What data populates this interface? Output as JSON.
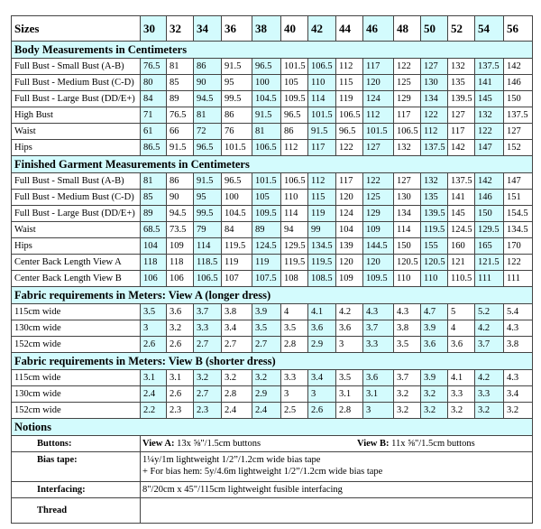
{
  "header": {
    "label": "Sizes",
    "sizes": [
      "30",
      "32",
      "34",
      "36",
      "38",
      "40",
      "42",
      "44",
      "46",
      "48",
      "50",
      "52",
      "54",
      "56"
    ]
  },
  "colors": {
    "highlight": "#d3fbfd",
    "border": "#444444"
  },
  "sections": [
    {
      "title": "Body Measurements in Centimeters",
      "rows": [
        {
          "label": "Full Bust - Small Bust (A-B)",
          "values": [
            "76.5",
            "81",
            "86",
            "91.5",
            "96.5",
            "101.5",
            "106.5",
            "112",
            "117",
            "122",
            "127",
            "132",
            "137.5",
            "142"
          ]
        },
        {
          "label": "Full Bust - Medium Bust (C-D)",
          "values": [
            "80",
            "85",
            "90",
            "95",
            "100",
            "105",
            "110",
            "115",
            "120",
            "125",
            "130",
            "135",
            "141",
            "146"
          ]
        },
        {
          "label": "Full Bust - Large Bust (DD/E+)",
          "values": [
            "84",
            "89",
            "94.5",
            "99.5",
            "104.5",
            "109.5",
            "114",
            "119",
            "124",
            "129",
            "134",
            "139.5",
            "145",
            "150"
          ]
        },
        {
          "label": "High Bust",
          "values": [
            "71",
            "76.5",
            "81",
            "86",
            "91.5",
            "96.5",
            "101.5",
            "106.5",
            "112",
            "117",
            "122",
            "127",
            "132",
            "137.5"
          ]
        },
        {
          "label": "Waist",
          "values": [
            "61",
            "66",
            "72",
            "76",
            "81",
            "86",
            "91.5",
            "96.5",
            "101.5",
            "106.5",
            "112",
            "117",
            "122",
            "127"
          ]
        },
        {
          "label": "Hips",
          "values": [
            "86.5",
            "91.5",
            "96.5",
            "101.5",
            "106.5",
            "112",
            "117",
            "122",
            "127",
            "132",
            "137.5",
            "142",
            "147",
            "152"
          ]
        }
      ]
    },
    {
      "title": "Finished Garment Measurements in Centimeters",
      "rows": [
        {
          "label": "Full Bust - Small Bust (A-B)",
          "values": [
            "81",
            "86",
            "91.5",
            "96.5",
            "101.5",
            "106.5",
            "112",
            "117",
            "122",
            "127",
            "132",
            "137.5",
            "142",
            "147"
          ]
        },
        {
          "label": "Full Bust - Medium Bust (C-D)",
          "values": [
            "85",
            "90",
            "95",
            "100",
            "105",
            "110",
            "115",
            "120",
            "125",
            "130",
            "135",
            "141",
            "146",
            "151"
          ]
        },
        {
          "label": "Full Bust - Large Bust (DD/E+)",
          "values": [
            "89",
            "94.5",
            "99.5",
            "104.5",
            "109.5",
            "114",
            "119",
            "124",
            "129",
            "134",
            "139.5",
            "145",
            "150",
            "154.5"
          ]
        },
        {
          "label": "Waist",
          "values": [
            "68.5",
            "73.5",
            "79",
            "84",
            "89",
            "94",
            "99",
            "104",
            "109",
            "114",
            "119.5",
            "124.5",
            "129.5",
            "134.5"
          ]
        },
        {
          "label": "Hips",
          "values": [
            "104",
            "109",
            "114",
            "119.5",
            "124.5",
            "129.5",
            "134.5",
            "139",
            "144.5",
            "150",
            "155",
            "160",
            "165",
            "170"
          ]
        },
        {
          "label": "Center Back Length View A",
          "values": [
            "118",
            "118",
            "118.5",
            "119",
            "119",
            "119.5",
            "119.5",
            "120",
            "120",
            "120.5",
            "120.5",
            "121",
            "121.5",
            "122"
          ]
        },
        {
          "label": "Center Back Length View B",
          "values": [
            "106",
            "106",
            "106.5",
            "107",
            "107.5",
            "108",
            "108.5",
            "109",
            "109.5",
            "110",
            "110",
            "110.5",
            "111",
            "111"
          ]
        }
      ]
    },
    {
      "title": "Fabric requirements in Meters: View A (longer dress)",
      "rows": [
        {
          "label": "115cm wide",
          "values": [
            "3.5",
            "3.6",
            "3.7",
            "3.8",
            "3.9",
            "4",
            "4.1",
            "4.2",
            "4.3",
            "4.3",
            "4.7",
            "5",
            "5.2",
            "5.4"
          ]
        },
        {
          "label": "130cm wide",
          "values": [
            "3",
            "3.2",
            "3.3",
            "3.4",
            "3.5",
            "3.5",
            "3.6",
            "3.6",
            "3.7",
            "3.8",
            "3.9",
            "4",
            "4.2",
            "4.3"
          ]
        },
        {
          "label": "152cm wide",
          "values": [
            "2.6",
            "2.6",
            "2.7",
            "2.7",
            "2.7",
            "2.8",
            "2.9",
            "3",
            "3.3",
            "3.5",
            "3.6",
            "3.6",
            "3.7",
            "3.8"
          ]
        }
      ]
    },
    {
      "title": "Fabric requirements in Meters: View B (shorter dress)",
      "rows": [
        {
          "label": "115cm wide",
          "values": [
            "3.1",
            "3.1",
            "3.2",
            "3.2",
            "3.2",
            "3.3",
            "3.4",
            "3.5",
            "3.6",
            "3.7",
            "3.9",
            "4.1",
            "4.2",
            "4.3"
          ]
        },
        {
          "label": "130cm wide",
          "values": [
            "2.4",
            "2.6",
            "2.7",
            "2.8",
            "2.9",
            "3",
            "3",
            "3.1",
            "3.1",
            "3.2",
            "3.2",
            "3.3",
            "3.3",
            "3.4"
          ]
        },
        {
          "label": "152cm wide",
          "values": [
            "2.2",
            "2.3",
            "2.3",
            "2.4",
            "2.4",
            "2.5",
            "2.6",
            "2.8",
            "3",
            "3.2",
            "3.2",
            "3.2",
            "3.2",
            "3.2"
          ]
        }
      ]
    }
  ],
  "notions": {
    "title": "Notions",
    "buttons": {
      "label": "Buttons:",
      "view_a_label": "View A:",
      "view_a_text": " 13x ⅝\"/1.5cm buttons",
      "view_b_label": "View B:",
      "view_b_text": " 11x ⅝\"/1.5cm buttons"
    },
    "bias_tape": {
      "label": "Bias tape:",
      "line1": "1¼y/1m lightweight 1/2”/1.2cm wide bias tape",
      "line2": "+ For bias hem: 5y/4.6m lightweight 1/2”/1.2cm wide bias tape"
    },
    "interfacing": {
      "label": "Interfacing:",
      "text": "8\"/20cm x 45\"/115cm lightweight fusible interfacing"
    },
    "thread": {
      "label": "Thread"
    }
  }
}
